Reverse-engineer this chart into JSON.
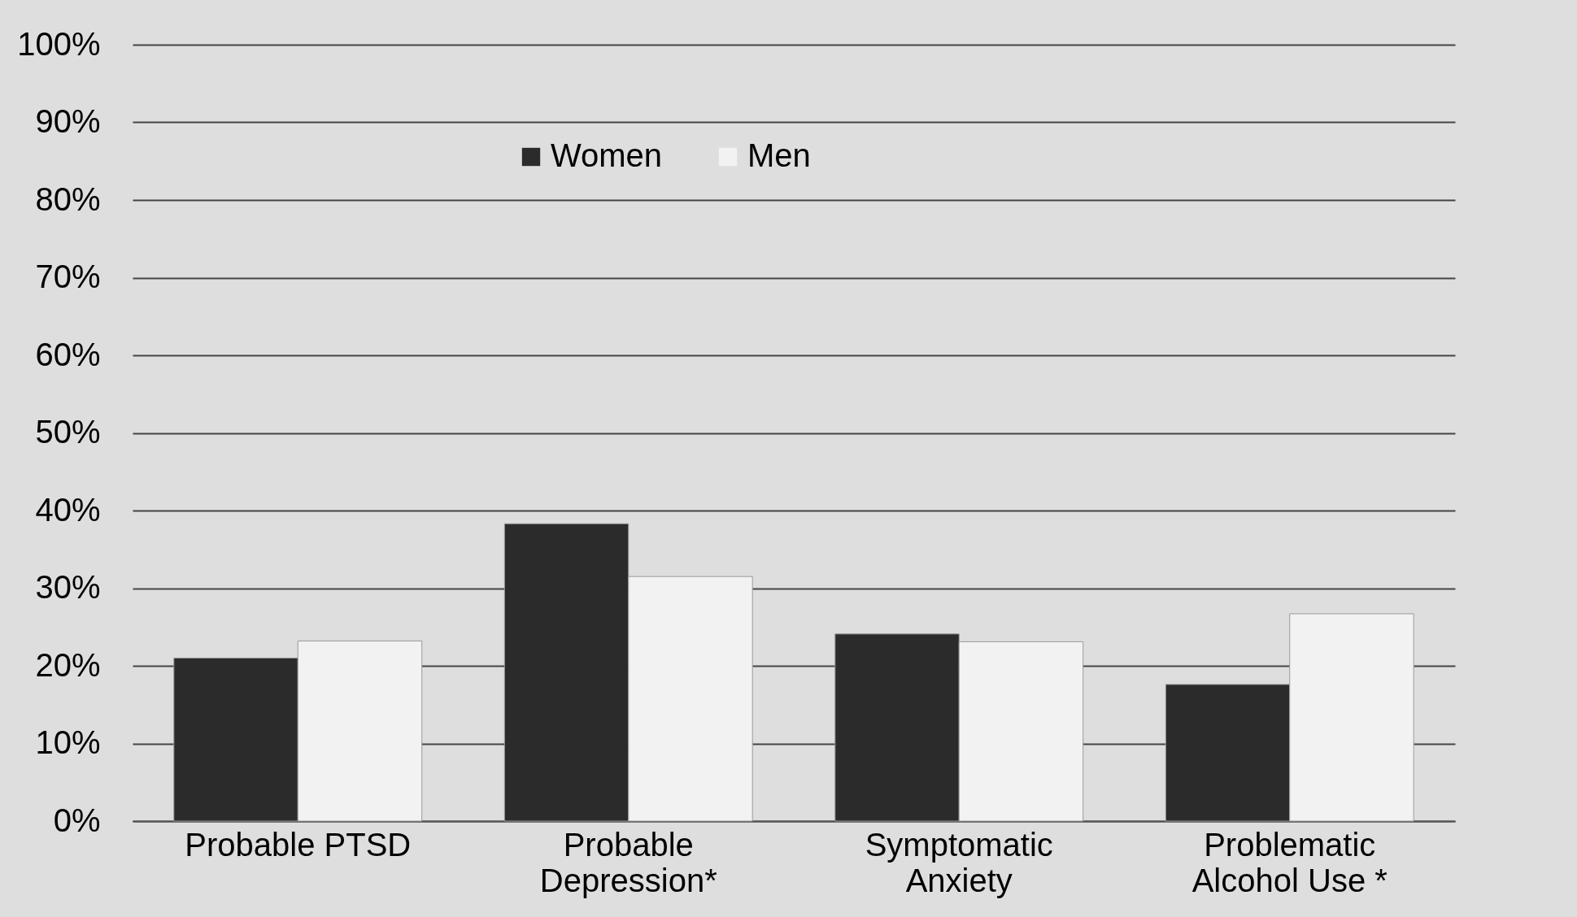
{
  "chart_data": {
    "type": "bar",
    "categories": [
      "Probable  PTSD",
      "Probable\nDepression*",
      "Symptomatic\nAnxiety",
      "Problematic\nAlcohol Use *"
    ],
    "series": [
      {
        "name": "Women",
        "color": "#2b2b2b",
        "values": [
          21,
          38.3,
          24.1,
          17.6
        ]
      },
      {
        "name": "Men",
        "color": "#f2f2f2",
        "values": [
          23.2,
          31.5,
          23.1,
          26.7
        ]
      }
    ],
    "ylim": [
      0,
      100
    ],
    "yticks": [
      {
        "value": 0,
        "label": "0%"
      },
      {
        "value": 10,
        "label": "10%"
      },
      {
        "value": 20,
        "label": "20%"
      },
      {
        "value": 30,
        "label": "30%"
      },
      {
        "value": 40,
        "label": "40%"
      },
      {
        "value": 50,
        "label": "50%"
      },
      {
        "value": 60,
        "label": "60%"
      },
      {
        "value": 70,
        "label": "70%"
      },
      {
        "value": 80,
        "label": "80%"
      },
      {
        "value": 90,
        "label": "90%"
      },
      {
        "value": 100,
        "label": "100%"
      }
    ],
    "grid": "y",
    "legend": "top"
  }
}
